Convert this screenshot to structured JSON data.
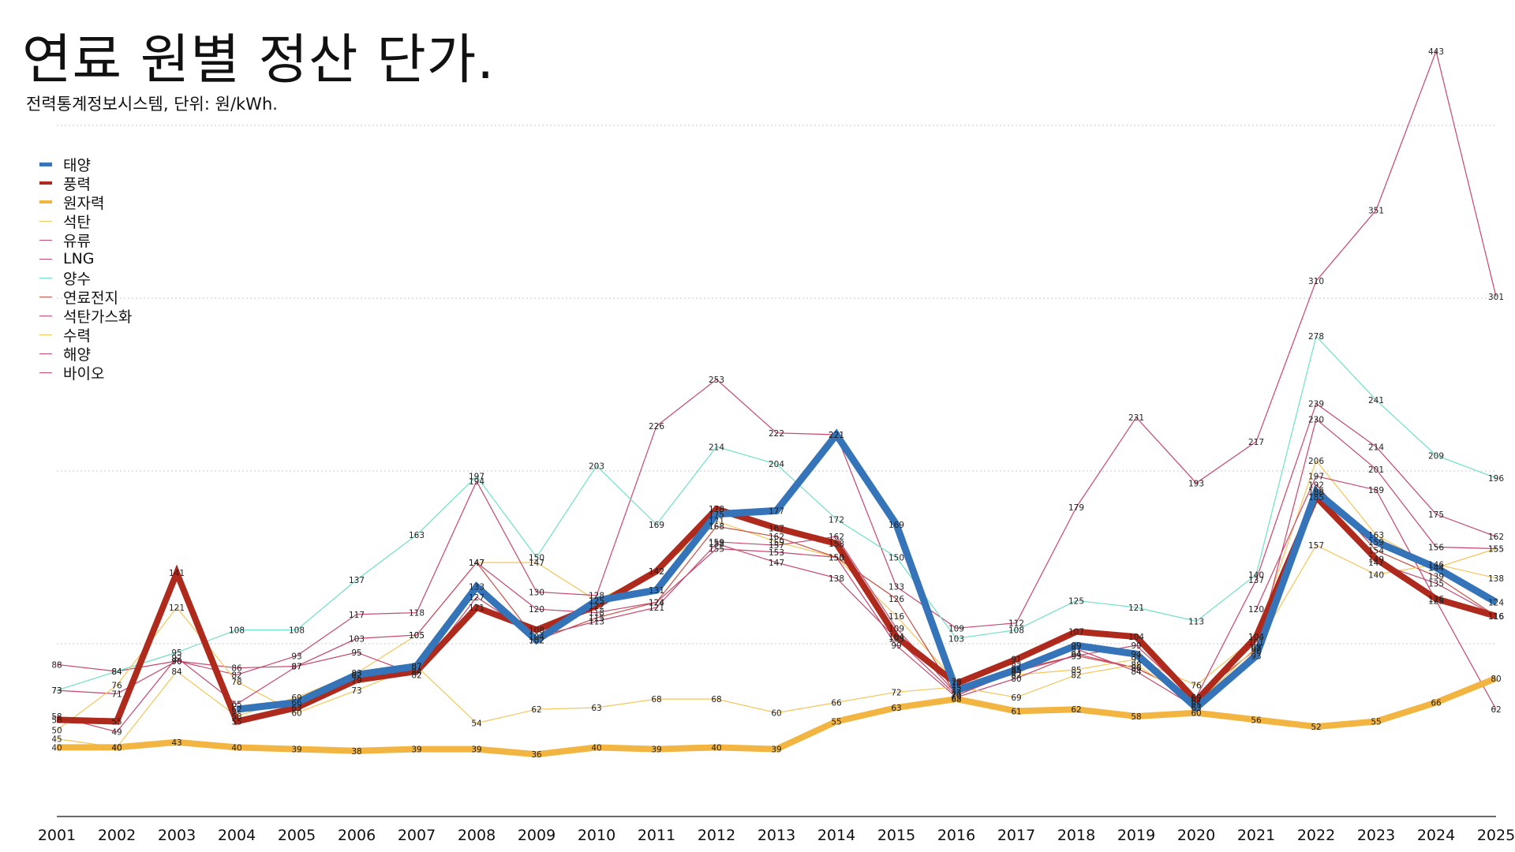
{
  "header": {
    "title": "연료 원별 정산 단가.",
    "subtitle": "전력통계정보시스템, 단위: 원/kWh."
  },
  "chart_data": {
    "type": "line",
    "title": "연료 원별 정산 단가.",
    "subtitle": "전력통계정보시스템, 단위: 원/kWh.",
    "xlabel": "",
    "ylabel": "",
    "ylim": [
      0,
      460
    ],
    "grid": true,
    "legend_position": "top-left",
    "x": [
      2001,
      2002,
      2003,
      2004,
      2005,
      2006,
      2007,
      2008,
      2009,
      2010,
      2011,
      2012,
      2013,
      2014,
      2015,
      2016,
      2017,
      2018,
      2019,
      2020,
      2021,
      2022,
      2023,
      2024,
      2025
    ],
    "series": [
      {
        "name": "태양",
        "color": "#3574b8",
        "width": 9,
        "values": [
          null,
          null,
          null,
          62,
          66,
          82,
          87,
          133,
          102,
          125,
          131,
          175,
          177,
          221,
          169,
          73,
          85,
          99,
          94,
          63,
          93,
          188,
          159,
          144,
          124
        ]
      },
      {
        "name": "풍력",
        "color": "#ae2a1c",
        "width": 8,
        "values": [
          56,
          55,
          141,
          55,
          63,
          79,
          84,
          121,
          108,
          122,
          142,
          178,
          167,
          158,
          104,
          77,
          91,
          107,
          104,
          67,
          104,
          185,
          149,
          126,
          116
        ]
      },
      {
        "name": "원자력",
        "color": "#f2b541",
        "width": 8,
        "values": [
          40,
          40,
          43,
          40,
          39,
          38,
          39,
          39,
          36,
          40,
          39,
          40,
          39,
          55,
          63,
          68,
          61,
          62,
          58,
          60,
          56,
          52,
          55,
          66,
          80
        ]
      },
      {
        "name": "석탄",
        "color": "#f3c65a",
        "width": 1.2,
        "values": [
          45,
          40,
          84,
          58,
          69,
          83,
          105,
          147,
          147,
          125,
          142,
          171,
          159,
          150,
          116,
          78,
          82,
          85,
          91,
          76,
          104,
          206,
          163,
          144,
          155
        ]
      },
      {
        "name": "유류",
        "color": "#c7476d",
        "width": 1.2,
        "values": [
          88,
          84,
          90,
          82,
          93,
          117,
          118,
          194,
          130,
          128,
          226,
          253,
          222,
          221,
          133,
          109,
          112,
          179,
          231,
          193,
          217,
          310,
          351,
          443,
          301
        ]
      },
      {
        "name": "LNG",
        "color": "#c7476d",
        "width": 1.2,
        "values": [
          73,
          71,
          90,
          86,
          87,
          103,
          105,
          147,
          120,
          118,
          124,
          155,
          153,
          150,
          99,
          69,
          80,
          94,
          86,
          69,
          137,
          239,
          214,
          175,
          162
        ]
      },
      {
        "name": "양수",
        "color": "#70dfc9",
        "width": 1.2,
        "values": [
          73,
          84,
          95,
          108,
          108,
          137,
          163,
          197,
          150,
          203,
          169,
          214,
          204,
          172,
          150,
          103,
          108,
          125,
          121,
          113,
          140,
          278,
          241,
          209,
          196
        ]
      },
      {
        "name": "연료전지",
        "color": "#c94e45",
        "width": 1.2,
        "values": [
          null,
          null,
          null,
          null,
          null,
          null,
          null,
          147,
          102,
          115,
          124,
          168,
          162,
          150,
          126,
          70,
          85,
          93,
          86,
          69,
          97,
          192,
          154,
          139,
          116
        ]
      },
      {
        "name": "석탄가스화",
        "color": "#c7476d",
        "width": 1.2,
        "values": [
          null,
          null,
          null,
          null,
          null,
          null,
          null,
          null,
          null,
          null,
          null,
          null,
          null,
          null,
          null,
          null,
          null,
          null,
          null,
          null,
          120,
          197,
          189,
          125,
          62
        ]
      },
      {
        "name": "수력",
        "color": "#f3c65a",
        "width": 1.2,
        "values": [
          50,
          76,
          121,
          78,
          60,
          73,
          87,
          54,
          62,
          63,
          68,
          68,
          60,
          66,
          72,
          75,
          69,
          82,
          88,
          65,
          98,
          157,
          140,
          146,
          138
        ]
      },
      {
        "name": "해양",
        "color": "#c7476d",
        "width": 1.2,
        "values": [
          null,
          null,
          null,
          null,
          null,
          null,
          null,
          null,
          null,
          null,
          null,
          159,
          157,
          162,
          109,
          71,
          87,
          97,
          84,
          63,
          96,
          230,
          201,
          156,
          155
        ]
      },
      {
        "name": "바이오",
        "color": "#c7476d",
        "width": 1.2,
        "values": [
          58,
          49,
          92,
          65,
          87,
          95,
          82,
          127,
          104,
          113,
          121,
          158,
          147,
          138,
          103,
          70,
          84,
          93,
          99,
          67,
          101,
          188,
          147,
          135,
          116
        ]
      }
    ]
  }
}
